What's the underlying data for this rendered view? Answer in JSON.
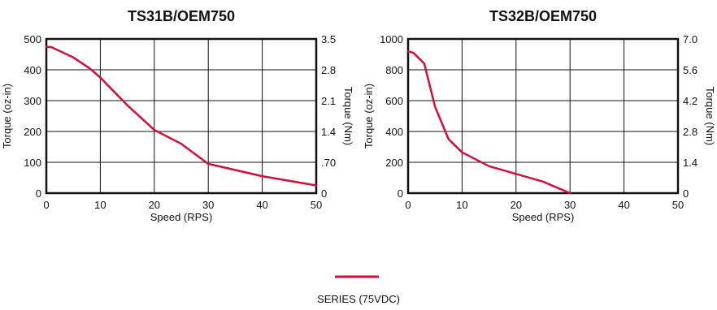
{
  "chart_data": [
    {
      "type": "line",
      "title": "TS31B/OEM750",
      "xlabel": "Speed (RPS)",
      "ylabel": "Torque (oz-in)",
      "y2label": "Torque (Nm)",
      "xlim": [
        0,
        50
      ],
      "ylim": [
        0,
        500
      ],
      "x_ticks": [
        "0",
        "10",
        "20",
        "30",
        "40",
        "50"
      ],
      "y_ticks": [
        "0",
        "100",
        "200",
        "300",
        "400",
        "500"
      ],
      "y2_ticks": [
        "0",
        ".70",
        "1.4",
        "2.1",
        "2.8",
        "3.5"
      ],
      "grid": true,
      "series": [
        {
          "name": "SERIES (75VDC)",
          "color": "#d0103a",
          "x": [
            0,
            1,
            5,
            8,
            10,
            15,
            20,
            25,
            30,
            40,
            50
          ],
          "y": [
            475,
            473,
            440,
            405,
            375,
            285,
            205,
            160,
            95,
            55,
            25
          ]
        }
      ]
    },
    {
      "type": "line",
      "title": "TS32B/OEM750",
      "xlabel": "Speed (RPS)",
      "ylabel": "Torque (oz-in)",
      "y2label": "Torque (Nm)",
      "xlim": [
        0,
        50
      ],
      "ylim": [
        0,
        1000
      ],
      "x_ticks": [
        "0",
        "10",
        "20",
        "30",
        "40",
        "50"
      ],
      "y_ticks": [
        "0",
        "200",
        "400",
        "600",
        "800",
        "1000"
      ],
      "y2_ticks": [
        "0",
        "1.4",
        "2.8",
        "4.2",
        "5.6",
        "7.0"
      ],
      "grid": true,
      "series": [
        {
          "name": "SERIES (75VDC)",
          "color": "#d0103a",
          "x": [
            0,
            1,
            3,
            5,
            7.5,
            10,
            15,
            20,
            25,
            30
          ],
          "y": [
            920,
            910,
            840,
            560,
            350,
            265,
            175,
            125,
            75,
            0
          ]
        }
      ]
    }
  ],
  "legend": {
    "label": "SERIES (75VDC)",
    "color": "#d0103a",
    "position": "bottom-center"
  }
}
